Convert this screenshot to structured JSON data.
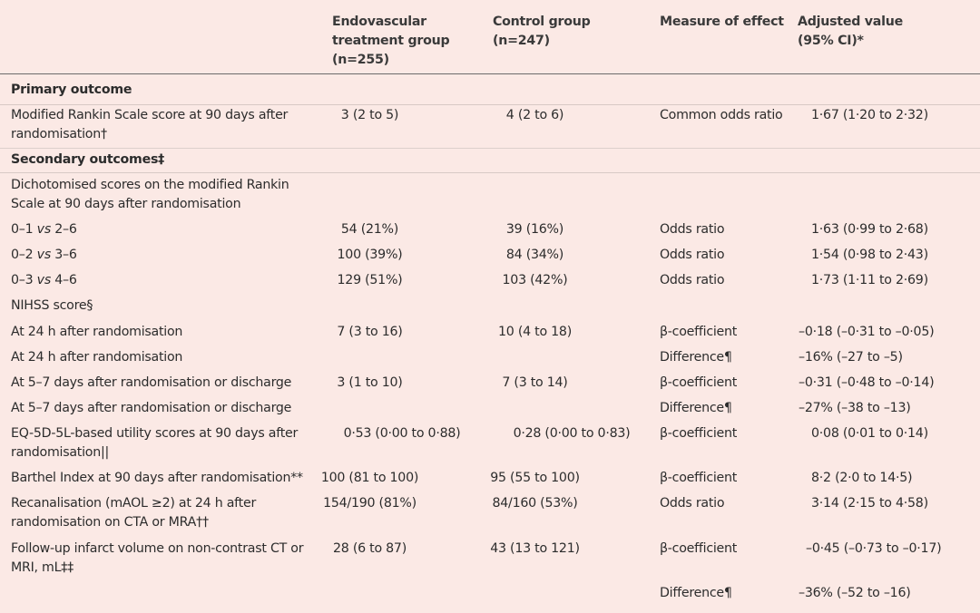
{
  "header": {
    "col_endovascular": "Endovascular\ntreatment group\n(n=255)",
    "col_control": "Control group\n(n=247)",
    "col_measure": "Measure of effect",
    "col_adjusted": "Adjusted value\n(95% CI)*"
  },
  "rows": [
    {
      "type": "section",
      "label": "Primary outcome"
    },
    {
      "type": "data",
      "label": "Modified Rankin Scale score at 90 days after randomisation†",
      "endo": "3 (2 to 5)",
      "control": "4 (2 to 6)",
      "measure": "Common odds ratio",
      "adjusted": "1·67 (1·20 to 2·32)"
    },
    {
      "type": "section",
      "label": "Secondary outcomes‡"
    },
    {
      "type": "data",
      "label": "Dichotomised scores on the modified Rankin Scale at 90 days after randomisation",
      "endo": "",
      "control": "",
      "measure": "",
      "adjusted": ""
    },
    {
      "type": "data",
      "label": "0–1 vs 2–6",
      "endo": "54 (21%)",
      "control": "39 (16%)",
      "measure": "Odds ratio",
      "adjusted": "1·63 (0·99 to 2·68)"
    },
    {
      "type": "data",
      "label": "0–2 vs 3–6",
      "endo": "100 (39%)",
      "control": "84 (34%)",
      "measure": "Odds ratio",
      "adjusted": "1·54 (0·98 to 2·43)"
    },
    {
      "type": "data",
      "label": "0–3 vs 4–6",
      "endo": "129 (51%)",
      "control": "103 (42%)",
      "measure": "Odds ratio",
      "adjusted": "1·73 (1·11 to 2·69)"
    },
    {
      "type": "data",
      "label": "NIHSS score§",
      "endo": "",
      "control": "",
      "measure": "",
      "adjusted": ""
    },
    {
      "type": "data",
      "label": "At 24 h after randomisation",
      "endo": "7 (3 to 16)",
      "control": "10 (4 to 18)",
      "measure": "β-coefficient",
      "adjusted": "–0·18 (–0·31 to –0·05)"
    },
    {
      "type": "data",
      "label": "At 24 h after randomisation",
      "endo": "",
      "control": "",
      "measure": "Difference¶",
      "adjusted": "–16% (–27 to –5)"
    },
    {
      "type": "data",
      "label": "At 5–7 days after randomisation or discharge",
      "endo": "3 (1 to 10)",
      "control": "7 (3 to 14)",
      "measure": "β-coefficient",
      "adjusted": "–0·31 (–0·48 to –0·14)"
    },
    {
      "type": "data",
      "label": "At 5–7 days after randomisation or discharge",
      "endo": "",
      "control": "",
      "measure": "Difference¶",
      "adjusted": "–27% (–38 to –13)"
    },
    {
      "type": "data",
      "label": "EQ-5D-5L-based utility scores at 90 days after randomisation||",
      "endo": "0·53 (0·00 to 0·88)",
      "control": "0·28 (0·00 to 0·83)",
      "measure": "β-coefficient",
      "adjusted": "0·08 (0·01 to 0·14)"
    },
    {
      "type": "data",
      "label": "Barthel Index at 90 days after randomisation**",
      "endo": "100 (81 to 100)",
      "control": "95 (55 to 100)",
      "measure": "β-coefficient",
      "adjusted": "8·2 (2·0 to 14·5)"
    },
    {
      "type": "data",
      "label": "Recanalisation (mAOL ≥2) at 24 h after randomisation on CTA or MRA††",
      "endo": "154/190 (81%)",
      "control": "84/160 (53%)",
      "measure": "Odds ratio",
      "adjusted": "3·14 (2·15 to 4·58)"
    },
    {
      "type": "data",
      "label": "Follow-up infarct volume on non-contrast CT or MRI, mL‡‡",
      "endo": "28 (6 to 87)",
      "control": "43 (13 to 121)",
      "measure": "β-coefficient",
      "adjusted": "–0·45 (–0·73 to –0·17)"
    },
    {
      "type": "data",
      "label": "",
      "endo": "",
      "control": "",
      "measure": "Difference¶",
      "adjusted": "–36% (–52 to –16)"
    }
  ]
}
